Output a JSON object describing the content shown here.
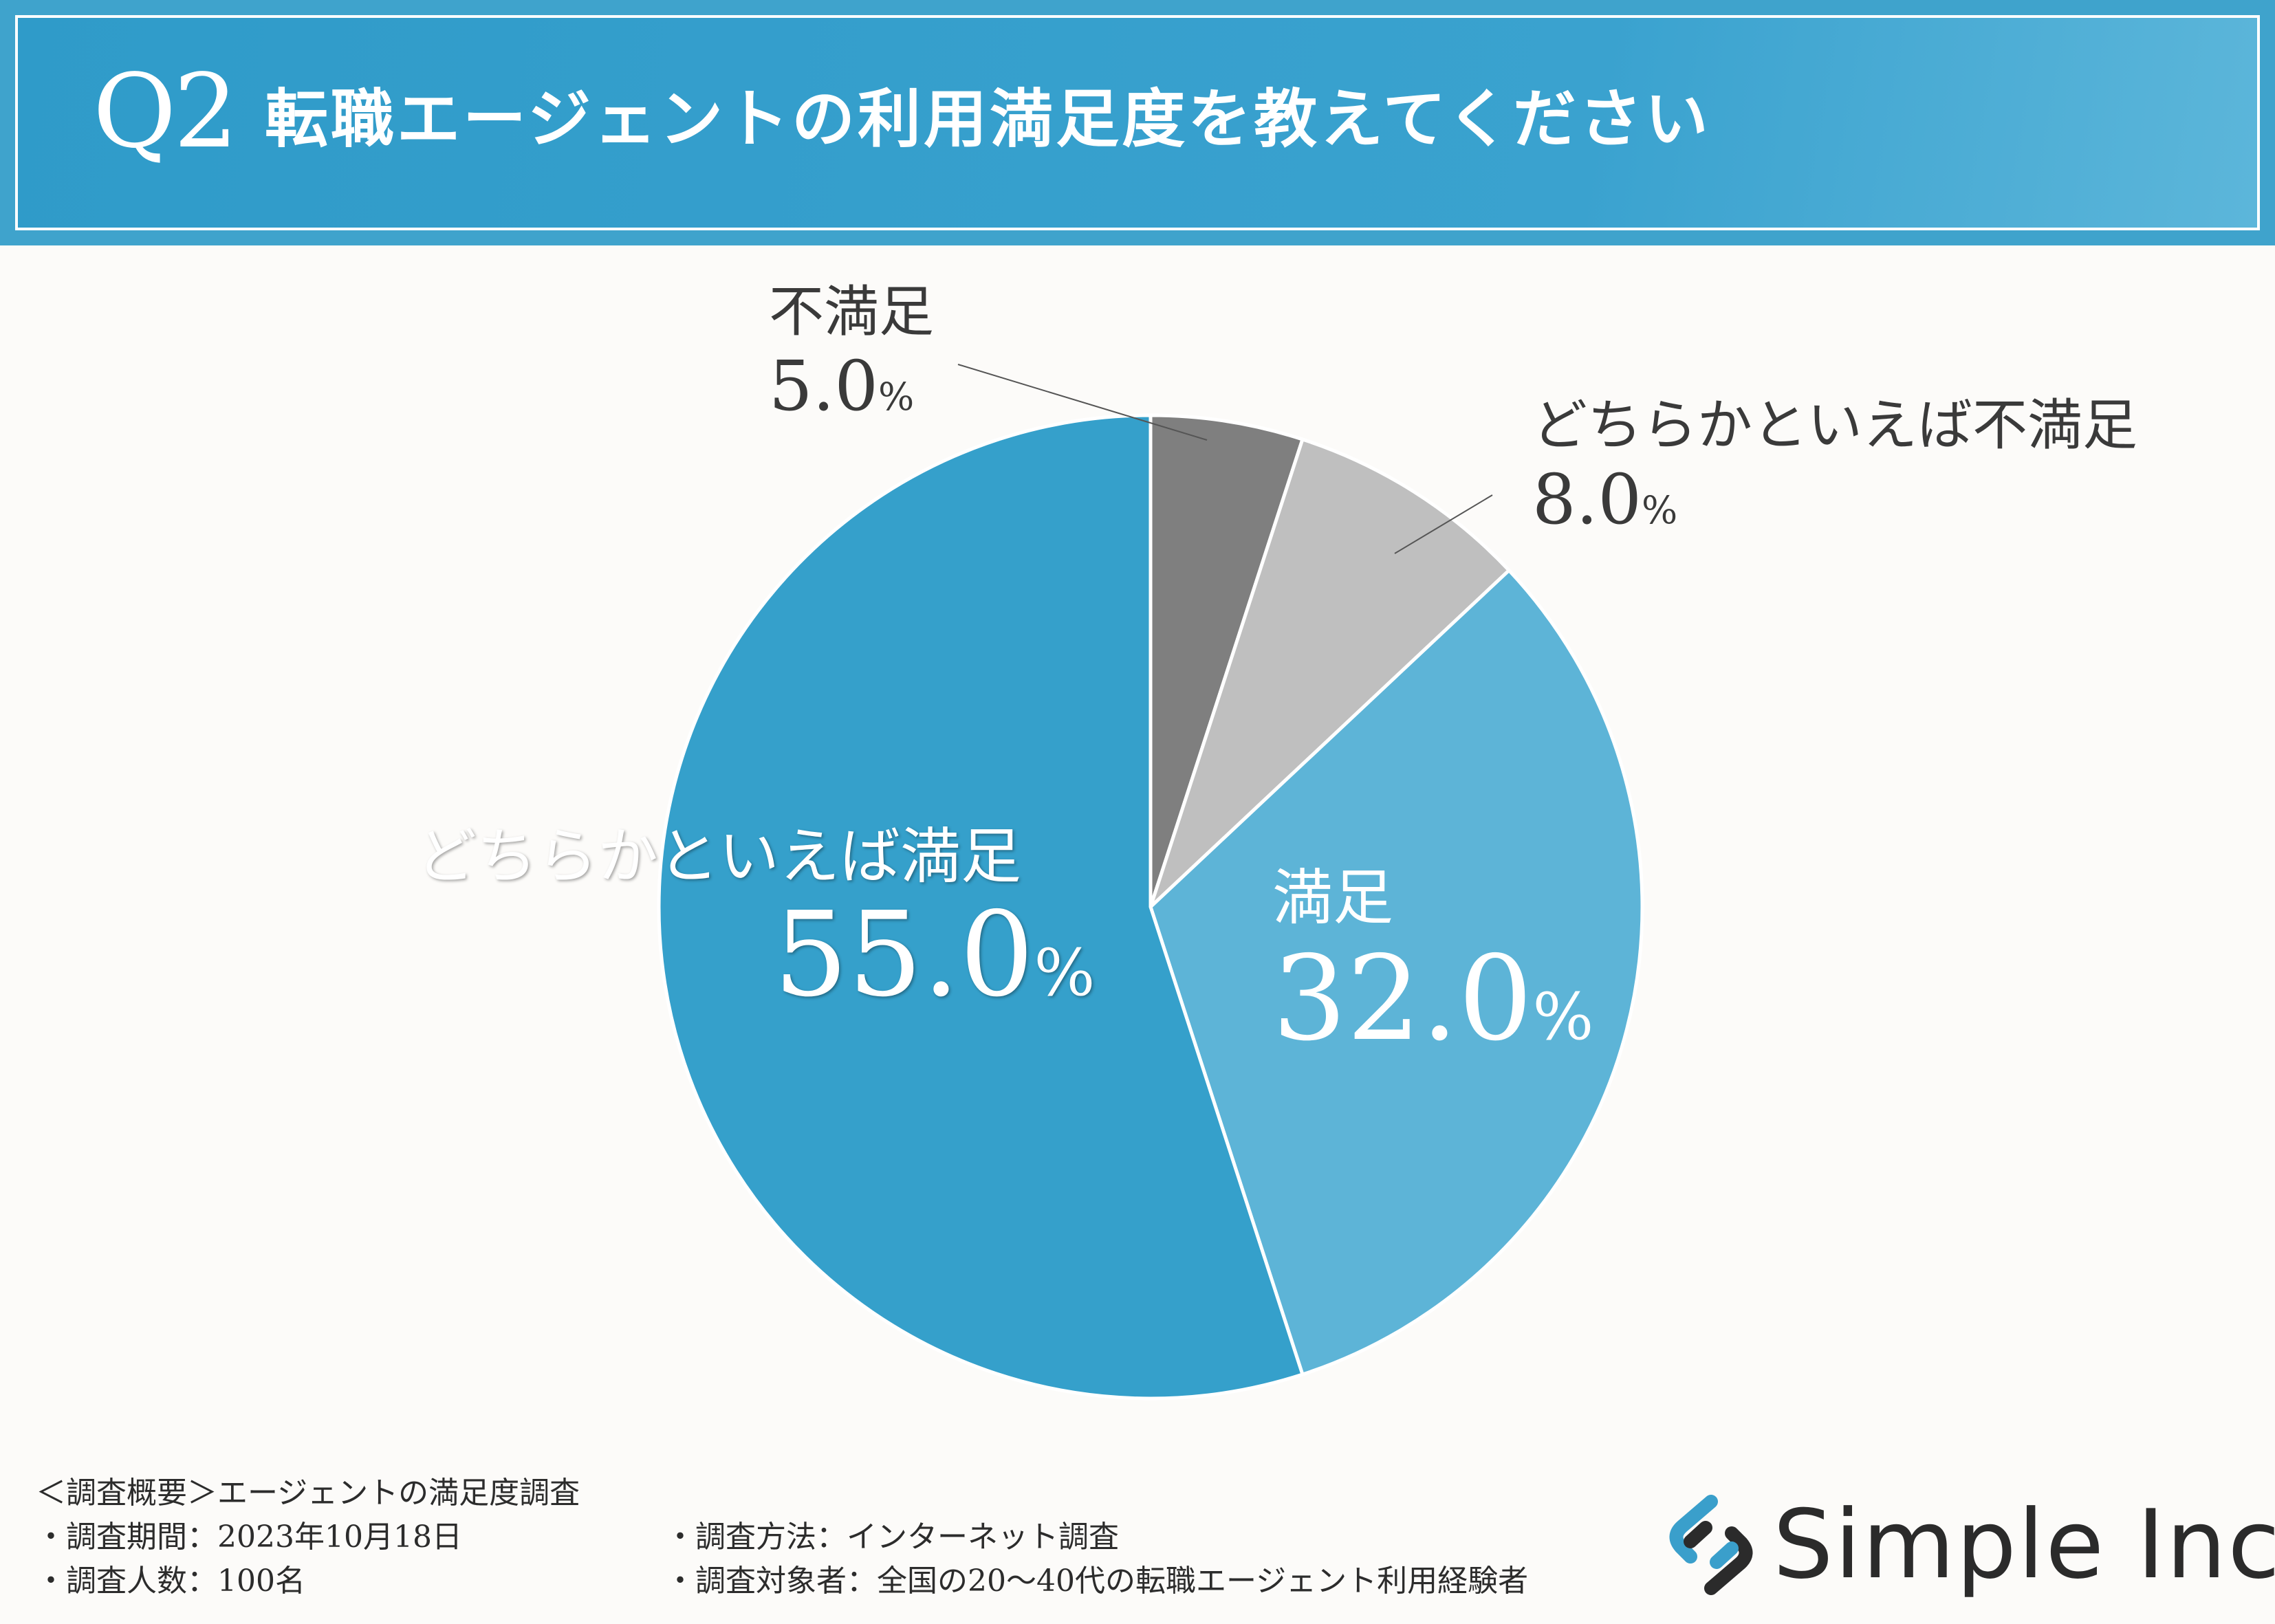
{
  "header": {
    "q_number": "Q2",
    "question": "転職エージェントの利用満足度を教えてください"
  },
  "chart_data": {
    "type": "pie",
    "title": "転職エージェントの利用満足度を教えてください",
    "slices": [
      {
        "label": "不満足",
        "value": 5.0,
        "value_text": "5.0",
        "color": "#7f7f7f"
      },
      {
        "label": "どちらかといえば不満足",
        "value": 8.0,
        "value_text": "8.0",
        "color": "#bfbfbf"
      },
      {
        "label": "満足",
        "value": 32.0,
        "value_text": "32.0",
        "color": "#5db4d7"
      },
      {
        "label": "どちらかといえば満足",
        "value": 55.0,
        "value_text": "55.0",
        "color": "#35a0cb"
      }
    ],
    "unit": "%",
    "start": "12 o'clock, clockwise"
  },
  "footer": {
    "summary": "＜調査概要＞エージェントの満足度調査",
    "period": "・調査期間：2023年10月18日",
    "method": "・調査方法：インターネット調査",
    "count": "・調査人数：100名",
    "target": "・調査対象者：全国の20〜40代の転職エージェント利用経験者"
  },
  "logo": {
    "text": "Simple Inc.",
    "icon": "link-chain-icon",
    "icon_color": "#3a9fcb"
  }
}
